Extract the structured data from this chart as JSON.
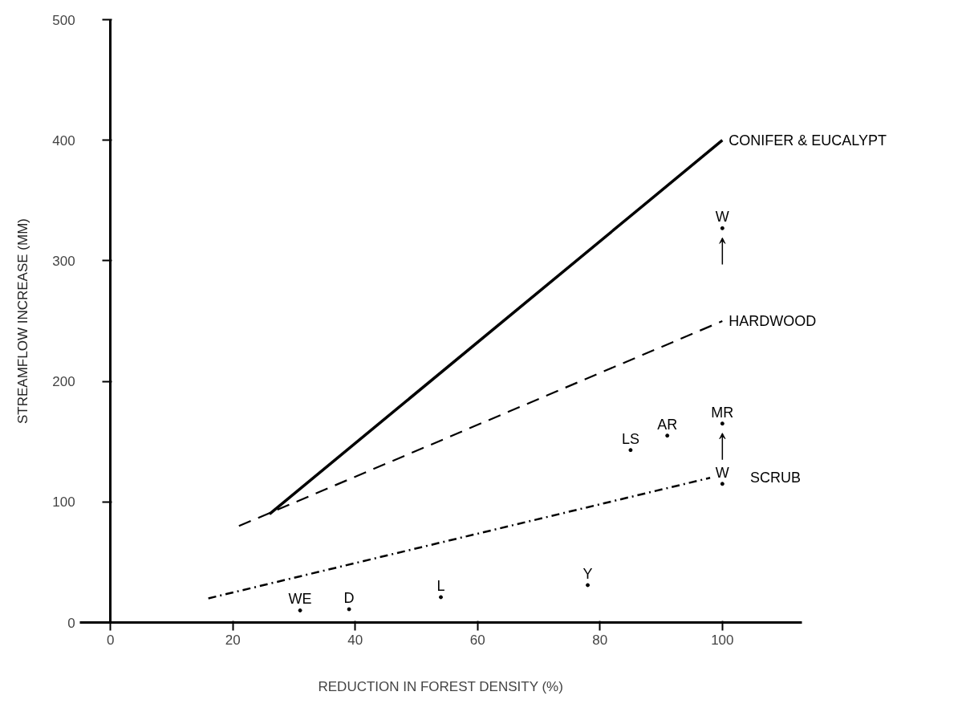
{
  "chart_data": {
    "type": "line",
    "xlabel": "REDUCTION IN FOREST DENSITY (%)",
    "ylabel": "STREAMFLOW INCREASE (MM)",
    "xlim": [
      -5,
      113
    ],
    "ylim": [
      0,
      500
    ],
    "xticks": [
      0,
      20,
      40,
      60,
      80,
      100
    ],
    "yticks": [
      0,
      100,
      200,
      300,
      400,
      500
    ],
    "grid": false,
    "series": [
      {
        "name": "CONIFER & EUCALYPT",
        "color": "#000000",
        "line_style": "solid",
        "x": [
          26,
          100
        ],
        "values": [
          90,
          400
        ]
      },
      {
        "name": "HARDWOOD",
        "color": "#000000",
        "line_style": "dashed",
        "x": [
          21,
          100
        ],
        "values": [
          80,
          250
        ]
      },
      {
        "name": "SCRUB",
        "color": "#000000",
        "line_style": "dashdot",
        "x": [
          16,
          98
        ],
        "values": [
          20,
          120
        ]
      },
      {
        "type": "scatter",
        "marker": "circle",
        "color": "#000000",
        "x": [
          100,
          100,
          100,
          85,
          91,
          31,
          39,
          54,
          78
        ],
        "values": [
          327,
          165,
          115,
          143,
          155,
          10,
          11,
          21,
          31
        ],
        "value_labels": [
          "W",
          "MR",
          "W",
          "LS",
          "AR",
          "WE",
          "D",
          "L",
          "Y"
        ]
      }
    ]
  }
}
